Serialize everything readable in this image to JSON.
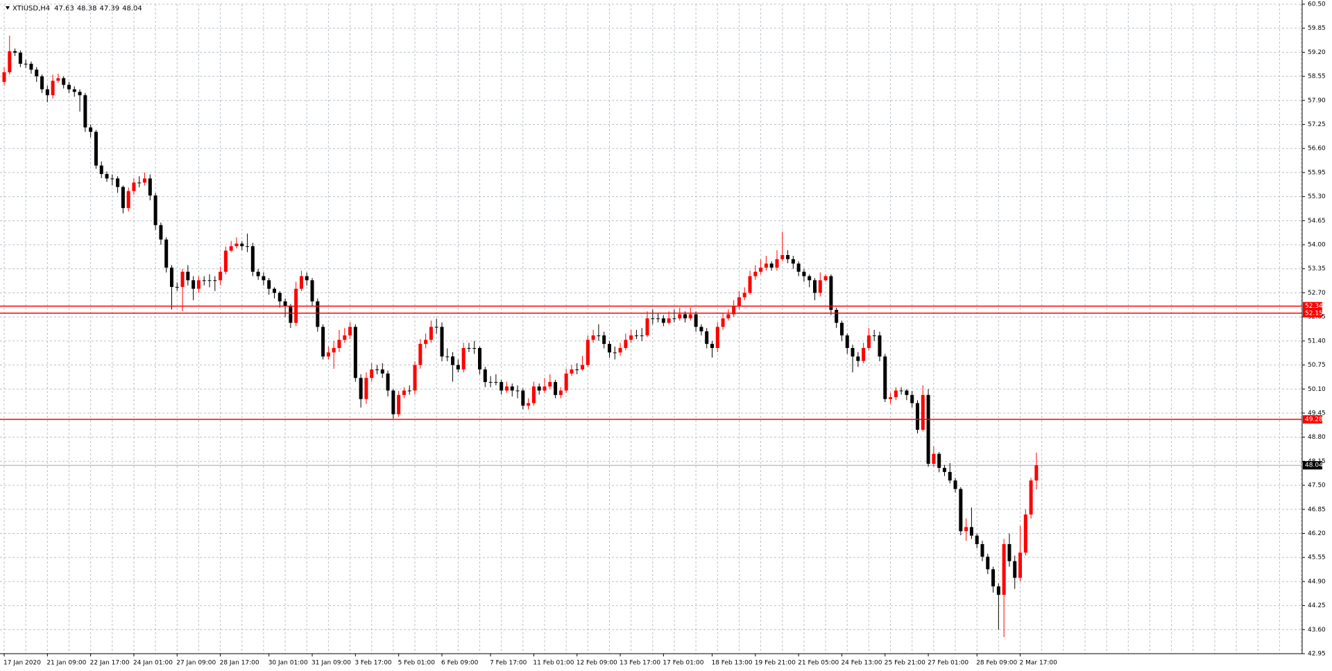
{
  "chart_data": {
    "type": "candlestick",
    "title": "XTIUSD,H4",
    "ylim": [
      42.95,
      60.5
    ],
    "yticks": [
      {
        "value": 60.5,
        "label": "60.50"
      },
      59.85,
      {
        "value": 59.2,
        "label": "59.20"
      },
      58.55,
      {
        "value": 57.9,
        "label": "57.90"
      },
      57.25,
      {
        "value": 56.6,
        "label": "56.60"
      },
      55.95,
      {
        "value": 55.3,
        "label": "55.30"
      },
      54.65,
      {
        "value": 54,
        "label": "54.00"
      },
      53.35,
      {
        "value": 52.7,
        "label": "52.70"
      },
      52.05,
      {
        "value": 51.4,
        "label": "51.40"
      },
      50.75,
      {
        "value": 50.1,
        "label": "50.10"
      },
      49.45,
      {
        "value": 48.8,
        "label": "48.80"
      },
      48.15,
      {
        "value": 47.5,
        "label": "47.50"
      },
      46.85,
      {
        "value": 46.2,
        "label": "46.20"
      },
      45.55,
      {
        "value": 44.9,
        "label": "44.90"
      },
      44.25,
      {
        "value": 43.6,
        "label": "43.60"
      },
      42.95
    ],
    "xticks": [
      {
        "value": 0,
        "label": "17 Jan 2020"
      },
      {
        "value": 8,
        "label": "21 Jan 09:00"
      },
      {
        "value": 16,
        "label": "22 Jan 17:00"
      },
      {
        "value": 24,
        "label": "24 Jan 01:00"
      },
      {
        "value": 32,
        "label": "27 Jan 09:00"
      },
      {
        "value": 40,
        "label": "28 Jan 17:00"
      },
      {
        "value": 49,
        "label": "30 Jan 01:00"
      },
      {
        "value": 57,
        "label": "31 Jan 09:00"
      },
      {
        "value": 65,
        "label": "3 Feb 17:00"
      },
      {
        "value": 73,
        "label": "5 Feb 01:00"
      },
      {
        "value": 81,
        "label": "6 Feb 09:00"
      },
      {
        "value": 90,
        "label": "7 Feb 17:00"
      },
      {
        "value": 98,
        "label": "11 Feb 01:00"
      },
      {
        "value": 106,
        "label": "12 Feb 09:00"
      },
      {
        "value": 114,
        "label": "13 Feb 17:00"
      },
      {
        "value": 122,
        "label": "17 Feb 01:00"
      },
      {
        "value": 131,
        "label": "18 Feb 13:00"
      },
      {
        "value": 139,
        "label": "19 Feb 21:00"
      },
      {
        "value": 147,
        "label": "21 Feb 05:00"
      },
      {
        "value": 155,
        "label": "24 Feb 13:00"
      },
      {
        "value": 163,
        "label": "25 Feb 21:00"
      },
      {
        "value": 171,
        "label": "27 Feb 01:00"
      },
      {
        "value": 180,
        "label": "28 Feb 09:00"
      },
      {
        "value": 188,
        "label": "2 Mar 17:00"
      }
    ],
    "grid": true,
    "up_color": "#ff0000",
    "down_color": "#000000",
    "level_color": "#ff0000",
    "levels": [
      52.34,
      52.15,
      49.28
    ],
    "ohlc": [
      [
        58.4,
        58.8,
        58.3,
        58.66
      ],
      [
        58.66,
        59.65,
        58.6,
        59.23
      ],
      [
        59.23,
        59.3,
        59.1,
        59.19
      ],
      [
        59.19,
        59.25,
        58.8,
        58.89
      ],
      [
        58.89,
        59.0,
        58.78,
        58.89
      ],
      [
        58.89,
        58.95,
        58.62,
        58.73
      ],
      [
        58.73,
        58.8,
        58.4,
        58.55
      ],
      [
        58.55,
        58.6,
        58.1,
        58.2
      ],
      [
        58.2,
        58.3,
        57.85,
        58.04
      ],
      [
        58.04,
        58.6,
        57.95,
        58.43
      ],
      [
        58.43,
        58.62,
        58.38,
        58.5
      ],
      [
        58.5,
        58.55,
        58.22,
        58.32
      ],
      [
        58.32,
        58.4,
        58.1,
        58.2
      ],
      [
        58.2,
        58.28,
        58.0,
        58.13
      ],
      [
        58.13,
        58.2,
        57.6,
        58.04
      ],
      [
        58.04,
        58.1,
        57.05,
        57.17
      ],
      [
        57.17,
        57.25,
        56.9,
        57.05
      ],
      [
        57.05,
        57.1,
        56.05,
        56.14
      ],
      [
        56.14,
        56.25,
        55.8,
        55.91
      ],
      [
        55.91,
        55.98,
        55.7,
        55.79
      ],
      [
        55.79,
        55.9,
        55.6,
        55.79
      ],
      [
        55.79,
        55.85,
        55.4,
        55.56
      ],
      [
        55.56,
        55.6,
        54.85,
        54.99
      ],
      [
        54.99,
        55.55,
        54.9,
        55.45
      ],
      [
        55.45,
        55.8,
        55.35,
        55.68
      ],
      [
        55.68,
        55.85,
        55.55,
        55.68
      ],
      [
        55.68,
        55.95,
        55.6,
        55.79
      ],
      [
        55.79,
        55.9,
        55.2,
        55.33
      ],
      [
        55.33,
        55.4,
        54.4,
        54.53
      ],
      [
        54.53,
        54.6,
        54.0,
        54.14
      ],
      [
        54.14,
        54.2,
        53.25,
        53.38
      ],
      [
        53.38,
        53.45,
        52.25,
        52.86
      ],
      [
        52.86,
        52.98,
        52.75,
        52.86
      ],
      [
        52.86,
        53.35,
        52.2,
        53.27
      ],
      [
        53.27,
        53.45,
        52.9,
        53.04
      ],
      [
        53.04,
        53.15,
        52.5,
        52.81
      ],
      [
        52.81,
        53.15,
        52.7,
        53.04
      ],
      [
        53.04,
        53.15,
        52.9,
        53.04
      ],
      [
        53.04,
        53.2,
        52.85,
        53.04
      ],
      [
        53.04,
        53.15,
        52.75,
        53.04
      ],
      [
        53.04,
        53.4,
        52.9,
        53.27
      ],
      [
        53.27,
        53.95,
        53.2,
        53.84
      ],
      [
        53.84,
        54.1,
        53.8,
        53.96
      ],
      [
        53.96,
        54.2,
        53.9,
        54.03
      ],
      [
        54.03,
        54.1,
        53.85,
        53.96
      ],
      [
        53.96,
        54.3,
        53.8,
        53.96
      ],
      [
        53.96,
        54.05,
        53.15,
        53.27
      ],
      [
        53.27,
        53.35,
        53.05,
        53.15
      ],
      [
        53.15,
        53.25,
        52.9,
        53.04
      ],
      [
        53.04,
        53.1,
        52.65,
        52.81
      ],
      [
        52.81,
        52.85,
        52.55,
        52.7
      ],
      [
        52.7,
        52.75,
        52.3,
        52.47
      ],
      [
        52.47,
        52.55,
        52.05,
        52.35
      ],
      [
        52.35,
        52.4,
        51.75,
        51.89
      ],
      [
        51.89,
        53.0,
        51.8,
        52.81
      ],
      [
        52.81,
        53.3,
        52.75,
        53.15
      ],
      [
        53.15,
        53.25,
        52.9,
        53.04
      ],
      [
        53.04,
        53.1,
        52.35,
        52.47
      ],
      [
        52.47,
        52.55,
        51.65,
        51.78
      ],
      [
        51.78,
        51.85,
        50.9,
        50.98
      ],
      [
        50.98,
        51.25,
        50.9,
        51.09
      ],
      [
        51.09,
        51.4,
        50.65,
        51.21
      ],
      [
        51.21,
        51.7,
        51.1,
        51.43
      ],
      [
        51.43,
        51.75,
        51.35,
        51.55
      ],
      [
        51.55,
        51.9,
        51.45,
        51.78
      ],
      [
        51.78,
        51.85,
        50.3,
        50.4
      ],
      [
        50.4,
        50.5,
        49.6,
        49.83
      ],
      [
        49.83,
        50.55,
        49.7,
        50.4
      ],
      [
        50.4,
        50.8,
        50.3,
        50.63
      ],
      [
        50.63,
        50.75,
        50.5,
        50.63
      ],
      [
        50.63,
        50.8,
        50.4,
        50.52
      ],
      [
        50.52,
        50.6,
        49.9,
        50.06
      ],
      [
        50.06,
        50.1,
        49.3,
        49.42
      ],
      [
        49.42,
        50.05,
        49.35,
        49.94
      ],
      [
        49.94,
        50.15,
        49.85,
        50.06
      ],
      [
        50.06,
        50.2,
        49.95,
        50.06
      ],
      [
        50.06,
        50.85,
        49.95,
        50.75
      ],
      [
        50.75,
        51.45,
        50.65,
        51.32
      ],
      [
        51.32,
        51.6,
        51.2,
        51.43
      ],
      [
        51.43,
        51.95,
        51.35,
        51.78
      ],
      [
        51.78,
        52.0,
        51.6,
        51.78
      ],
      [
        51.78,
        51.9,
        50.85,
        50.98
      ],
      [
        50.98,
        51.2,
        50.85,
        50.98
      ],
      [
        50.98,
        51.1,
        50.3,
        50.75
      ],
      [
        50.75,
        50.9,
        50.55,
        50.63
      ],
      [
        50.63,
        51.35,
        50.55,
        51.21
      ],
      [
        51.21,
        51.35,
        51.1,
        51.21
      ],
      [
        51.21,
        51.4,
        51.05,
        51.21
      ],
      [
        51.21,
        51.25,
        50.5,
        50.63
      ],
      [
        50.63,
        50.7,
        50.15,
        50.29
      ],
      [
        50.29,
        50.45,
        50.15,
        50.29
      ],
      [
        50.29,
        50.5,
        50.2,
        50.29
      ],
      [
        50.29,
        50.35,
        49.95,
        50.06
      ],
      [
        50.06,
        50.3,
        50.0,
        50.17
      ],
      [
        50.17,
        50.25,
        49.9,
        50.06
      ],
      [
        50.06,
        50.2,
        49.85,
        50.06
      ],
      [
        50.06,
        50.12,
        49.55,
        49.65
      ],
      [
        49.65,
        49.85,
        49.55,
        49.72
      ],
      [
        49.72,
        50.3,
        49.65,
        50.17
      ],
      [
        50.17,
        50.25,
        49.95,
        50.06
      ],
      [
        50.06,
        50.4,
        50.0,
        50.17
      ],
      [
        50.17,
        50.5,
        50.1,
        50.29
      ],
      [
        50.29,
        50.35,
        49.85,
        49.94
      ],
      [
        49.94,
        50.15,
        49.85,
        50.06
      ],
      [
        50.06,
        50.65,
        50.0,
        50.52
      ],
      [
        50.52,
        50.75,
        50.45,
        50.63
      ],
      [
        50.63,
        50.8,
        50.5,
        50.63
      ],
      [
        50.63,
        51.0,
        50.6,
        50.75
      ],
      [
        50.75,
        51.55,
        50.7,
        51.43
      ],
      [
        51.43,
        51.7,
        51.35,
        51.55
      ],
      [
        51.55,
        51.85,
        51.4,
        51.55
      ],
      [
        51.55,
        51.65,
        51.2,
        51.32
      ],
      [
        51.32,
        51.4,
        50.95,
        51.09
      ],
      [
        51.09,
        51.25,
        50.9,
        51.09
      ],
      [
        51.09,
        51.35,
        51.0,
        51.21
      ],
      [
        51.21,
        51.6,
        51.15,
        51.43
      ],
      [
        51.43,
        51.7,
        51.35,
        51.55
      ],
      [
        51.55,
        51.7,
        51.45,
        51.55
      ],
      [
        51.55,
        51.75,
        51.4,
        51.55
      ],
      [
        51.55,
        52.2,
        51.5,
        52.01
      ],
      [
        52.01,
        52.25,
        51.85,
        52.01
      ],
      [
        52.01,
        52.15,
        51.9,
        52.01
      ],
      [
        52.01,
        52.1,
        51.8,
        51.89
      ],
      [
        51.89,
        52.2,
        51.85,
        52.01
      ],
      [
        52.01,
        52.25,
        51.9,
        52.01
      ],
      [
        52.01,
        52.3,
        51.95,
        52.12
      ],
      [
        52.12,
        52.2,
        51.9,
        52.01
      ],
      [
        52.01,
        52.3,
        51.95,
        52.12
      ],
      [
        52.12,
        52.2,
        51.65,
        51.78
      ],
      [
        51.78,
        51.85,
        51.55,
        51.66
      ],
      [
        51.66,
        51.75,
        51.2,
        51.32
      ],
      [
        51.32,
        51.4,
        50.95,
        51.21
      ],
      [
        51.21,
        51.9,
        51.1,
        51.78
      ],
      [
        51.78,
        52.15,
        51.7,
        52.01
      ],
      [
        52.01,
        52.25,
        51.95,
        52.12
      ],
      [
        52.12,
        52.5,
        52.05,
        52.35
      ],
      [
        52.35,
        52.75,
        52.25,
        52.58
      ],
      [
        52.58,
        52.85,
        52.5,
        52.7
      ],
      [
        52.7,
        53.3,
        52.65,
        53.15
      ],
      [
        53.15,
        53.45,
        53.05,
        53.27
      ],
      [
        53.27,
        53.6,
        53.2,
        53.38
      ],
      [
        53.38,
        53.7,
        53.3,
        53.49
      ],
      [
        53.49,
        53.55,
        53.3,
        53.38
      ],
      [
        53.38,
        53.85,
        53.3,
        53.61
      ],
      [
        53.61,
        54.35,
        53.55,
        53.72
      ],
      [
        53.72,
        53.85,
        53.5,
        53.61
      ],
      [
        53.61,
        53.7,
        53.35,
        53.49
      ],
      [
        53.49,
        53.55,
        53.15,
        53.27
      ],
      [
        53.27,
        53.35,
        53.0,
        53.15
      ],
      [
        53.15,
        53.2,
        52.85,
        53.04
      ],
      [
        53.04,
        53.1,
        52.5,
        52.7
      ],
      [
        52.7,
        53.25,
        52.6,
        53.04
      ],
      [
        53.04,
        53.2,
        53.0,
        53.15
      ],
      [
        53.15,
        53.2,
        52.1,
        52.24
      ],
      [
        52.24,
        52.3,
        51.75,
        51.89
      ],
      [
        51.89,
        51.95,
        51.4,
        51.55
      ],
      [
        51.55,
        51.6,
        51.05,
        51.21
      ],
      [
        51.21,
        51.3,
        50.55,
        50.98
      ],
      [
        50.98,
        51.1,
        50.7,
        50.86
      ],
      [
        50.86,
        51.35,
        50.8,
        51.21
      ],
      [
        51.21,
        51.75,
        51.15,
        51.55
      ],
      [
        51.55,
        51.7,
        51.4,
        51.55
      ],
      [
        51.55,
        51.65,
        50.85,
        50.98
      ],
      [
        50.98,
        51.05,
        49.75,
        49.83
      ],
      [
        49.83,
        50.0,
        49.7,
        49.88
      ],
      [
        49.88,
        50.15,
        49.8,
        50.06
      ],
      [
        50.06,
        50.15,
        49.95,
        50.06
      ],
      [
        50.06,
        50.1,
        49.8,
        49.94
      ],
      [
        49.94,
        50.05,
        49.6,
        49.72
      ],
      [
        49.72,
        49.8,
        48.9,
        49.0
      ],
      [
        49.0,
        50.2,
        48.95,
        49.94
      ],
      [
        49.94,
        50.1,
        48.0,
        48.08
      ],
      [
        48.08,
        48.55,
        48.0,
        48.35
      ],
      [
        48.35,
        48.4,
        47.85,
        47.97
      ],
      [
        47.97,
        48.05,
        47.75,
        47.86
      ],
      [
        47.86,
        48.1,
        47.55,
        47.63
      ],
      [
        47.63,
        47.7,
        47.3,
        47.4
      ],
      [
        47.4,
        47.45,
        46.15,
        46.26
      ],
      [
        46.26,
        46.6,
        46.0,
        46.37
      ],
      [
        46.37,
        46.9,
        46.05,
        46.14
      ],
      [
        46.14,
        46.2,
        45.8,
        45.91
      ],
      [
        45.91,
        46.0,
        45.45,
        45.57
      ],
      [
        45.57,
        45.65,
        45.1,
        45.23
      ],
      [
        45.23,
        45.3,
        44.6,
        44.77
      ],
      [
        44.77,
        44.85,
        43.6,
        44.54
      ],
      [
        44.54,
        46.05,
        43.4,
        45.91
      ],
      [
        45.91,
        46.2,
        45.3,
        45.45
      ],
      [
        45.45,
        45.6,
        44.7,
        45.0
      ],
      [
        45.0,
        46.4,
        44.9,
        45.68
      ],
      [
        45.68,
        46.85,
        45.6,
        46.71
      ],
      [
        46.71,
        47.7,
        46.6,
        47.63
      ],
      [
        47.63,
        48.38,
        47.39,
        48.04
      ]
    ]
  }
}
